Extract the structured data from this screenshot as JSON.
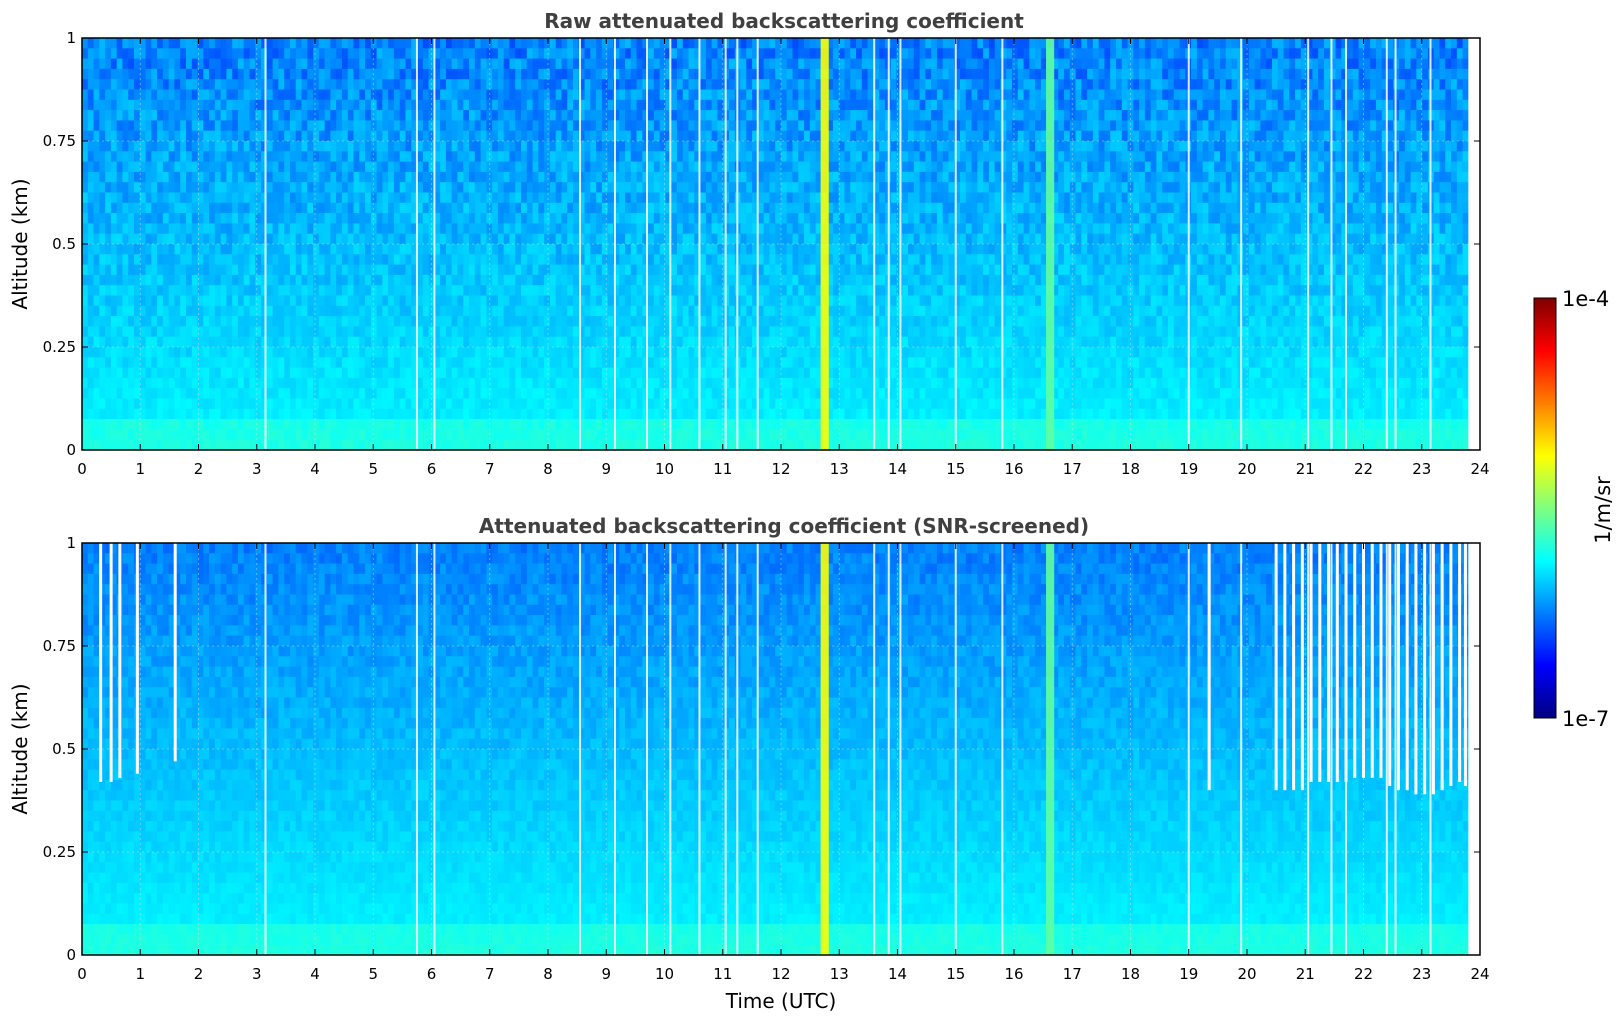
{
  "chart_data": [
    {
      "type": "heatmap",
      "title": "Raw attenuated backscattering coefficient",
      "xlabel": "",
      "ylabel": "Altitude (km)",
      "xlim": [
        0,
        24
      ],
      "ylim": [
        0,
        1
      ],
      "x_ticks": [
        "0",
        "1",
        "2",
        "3",
        "4",
        "5",
        "6",
        "7",
        "8",
        "9",
        "10",
        "11",
        "12",
        "13",
        "14",
        "15",
        "16",
        "17",
        "18",
        "19",
        "20",
        "21",
        "22",
        "23",
        "24"
      ],
      "y_ticks": [
        "0",
        "0.25",
        "0.5",
        "0.75",
        "1"
      ],
      "grid": true,
      "data_end_time": 23.8,
      "gaps": [
        3.15,
        5.75,
        6.05,
        8.55,
        9.15,
        9.7,
        10.1,
        10.6,
        11.05,
        11.25,
        11.6,
        13.6,
        13.85,
        14.05,
        15.0,
        15.8,
        19.0,
        19.9,
        21.05,
        21.45,
        21.7,
        22.4,
        22.55,
        23.15
      ],
      "high_bands": [
        {
          "x": 12.68,
          "width": 0.14,
          "level": 0.62
        },
        {
          "x": 16.55,
          "width": 0.14,
          "level": 0.47
        }
      ],
      "screened_cutoff": []
    },
    {
      "type": "heatmap",
      "title": "Attenuated backscattering coefficient (SNR-screened)",
      "xlabel": "Time (UTC)",
      "ylabel": "Altitude (km)",
      "xlim": [
        0,
        24
      ],
      "ylim": [
        0,
        1
      ],
      "x_ticks": [
        "0",
        "1",
        "2",
        "3",
        "4",
        "5",
        "6",
        "7",
        "8",
        "9",
        "10",
        "11",
        "12",
        "13",
        "14",
        "15",
        "16",
        "17",
        "18",
        "19",
        "20",
        "21",
        "22",
        "23",
        "24"
      ],
      "y_ticks": [
        "0",
        "0.25",
        "0.5",
        "0.75",
        "1"
      ],
      "grid": true,
      "data_end_time": 23.8,
      "gaps": [
        3.15,
        5.75,
        6.05,
        8.55,
        9.15,
        9.7,
        10.1,
        10.6,
        11.05,
        11.25,
        11.6,
        13.6,
        13.85,
        14.05,
        15.0,
        15.8,
        19.0,
        19.9,
        21.05,
        21.45,
        21.7,
        22.4,
        22.55,
        23.15
      ],
      "high_bands": [
        {
          "x": 12.68,
          "width": 0.14,
          "level": 0.62
        },
        {
          "x": 16.55,
          "width": 0.14,
          "level": 0.47
        }
      ],
      "screened_cutoff": [
        {
          "x": 0.32,
          "alt": 0.42
        },
        {
          "x": 0.5,
          "alt": 0.42
        },
        {
          "x": 0.65,
          "alt": 0.43
        },
        {
          "x": 0.95,
          "alt": 0.44
        },
        {
          "x": 1.6,
          "alt": 0.47
        },
        {
          "x": 19.35,
          "alt": 0.4
        },
        {
          "x": 20.5,
          "alt": 0.4
        },
        {
          "x": 20.65,
          "alt": 0.4
        },
        {
          "x": 20.8,
          "alt": 0.4
        },
        {
          "x": 20.95,
          "alt": 0.4
        },
        {
          "x": 21.1,
          "alt": 0.42
        },
        {
          "x": 21.25,
          "alt": 0.42
        },
        {
          "x": 21.4,
          "alt": 0.42
        },
        {
          "x": 21.55,
          "alt": 0.42
        },
        {
          "x": 21.7,
          "alt": 0.42
        },
        {
          "x": 21.85,
          "alt": 0.43
        },
        {
          "x": 22.0,
          "alt": 0.43
        },
        {
          "x": 22.15,
          "alt": 0.43
        },
        {
          "x": 22.3,
          "alt": 0.43
        },
        {
          "x": 22.45,
          "alt": 0.41
        },
        {
          "x": 22.6,
          "alt": 0.4
        },
        {
          "x": 22.75,
          "alt": 0.4
        },
        {
          "x": 22.9,
          "alt": 0.39
        },
        {
          "x": 23.05,
          "alt": 0.39
        },
        {
          "x": 23.2,
          "alt": 0.39
        },
        {
          "x": 23.35,
          "alt": 0.4
        },
        {
          "x": 23.5,
          "alt": 0.41
        },
        {
          "x": 23.65,
          "alt": 0.42
        },
        {
          "x": 23.75,
          "alt": 0.41
        }
      ]
    }
  ],
  "colorbar": {
    "label": "1/m/sr",
    "min_label": "1e-7",
    "max_label": "1e-4",
    "colormap": "jet",
    "colors": [
      "#00007f",
      "#0000ff",
      "#007fff",
      "#00ffff",
      "#7fff7f",
      "#ffff00",
      "#ff7f00",
      "#ff0000",
      "#7f0000"
    ]
  }
}
